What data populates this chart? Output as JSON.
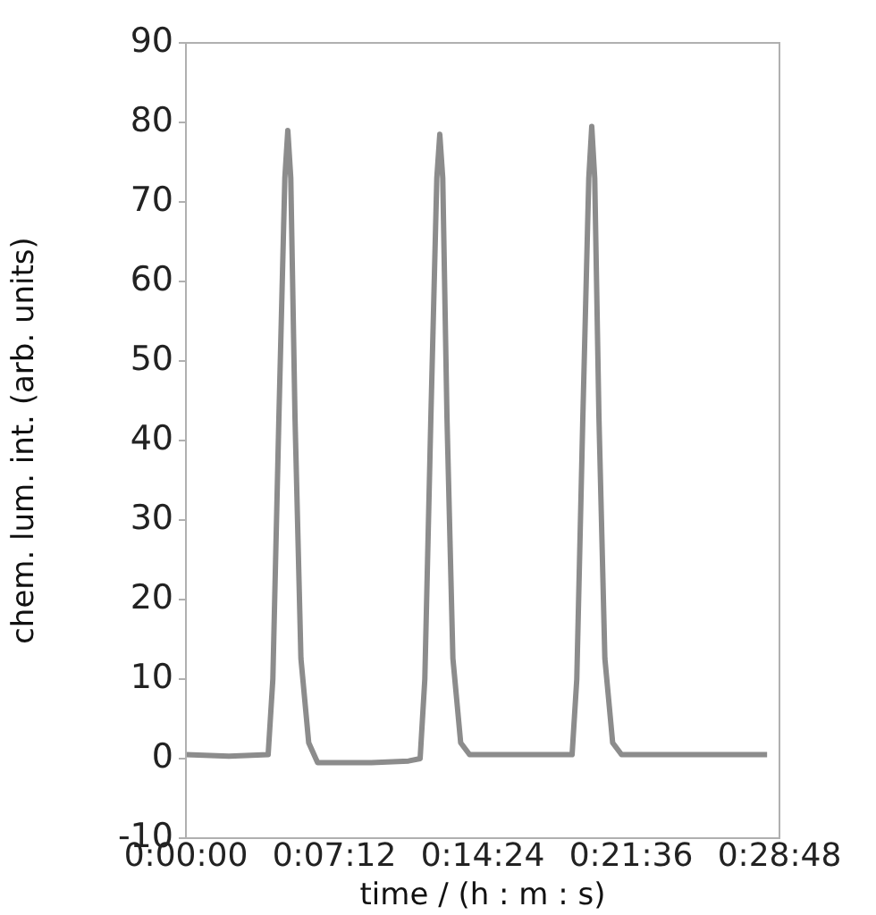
{
  "chart_data": {
    "type": "line",
    "xlabel": "time / (h : m : s)",
    "ylabel": "chem. lum. int. (arb. units)",
    "x": [
      0,
      0.035,
      0.0665,
      0.0703,
      0.0752,
      0.08,
      0.0824,
      0.0848,
      0.0882,
      0.093,
      0.0993,
      0.1065,
      0.15,
      0.18,
      0.1894,
      0.1932,
      0.1981,
      0.2029,
      0.2053,
      0.2077,
      0.2111,
      0.2159,
      0.2222,
      0.2294,
      0.27,
      0.3123,
      0.3161,
      0.321,
      0.3258,
      0.3282,
      0.3306,
      0.334,
      0.3388,
      0.3451,
      0.3523,
      0.41,
      0.47
    ],
    "series": [
      {
        "color": "#8c8c8c",
        "values": [
          0.5,
          0.3,
          0.5,
          10,
          43,
          73,
          79,
          73,
          43,
          12.6,
          2,
          -0.5,
          -0.5,
          -0.3,
          0,
          10,
          43,
          73,
          78.5,
          73,
          43,
          12.6,
          2,
          0.5,
          0.5,
          0.5,
          10,
          43,
          73,
          79.5,
          73,
          43,
          12.6,
          2,
          0.5,
          0.5,
          0.5
        ]
      }
    ],
    "xlim": [
      0,
      0.48
    ],
    "xticks": [
      {
        "value": 0,
        "label": "0:00:00"
      },
      {
        "value": 0.12,
        "label": "0:07:12"
      },
      {
        "value": 0.24,
        "label": "0:14:24"
      },
      {
        "value": 0.36,
        "label": "0:21:36"
      },
      {
        "value": 0.48,
        "label": "0:28:48"
      }
    ],
    "ylim": [
      -10,
      90
    ],
    "yticks": [
      -10,
      0,
      10,
      20,
      30,
      40,
      50,
      60,
      70,
      80,
      90
    ],
    "grid": false,
    "legend": false,
    "marker": "none",
    "line_style": "solid"
  }
}
